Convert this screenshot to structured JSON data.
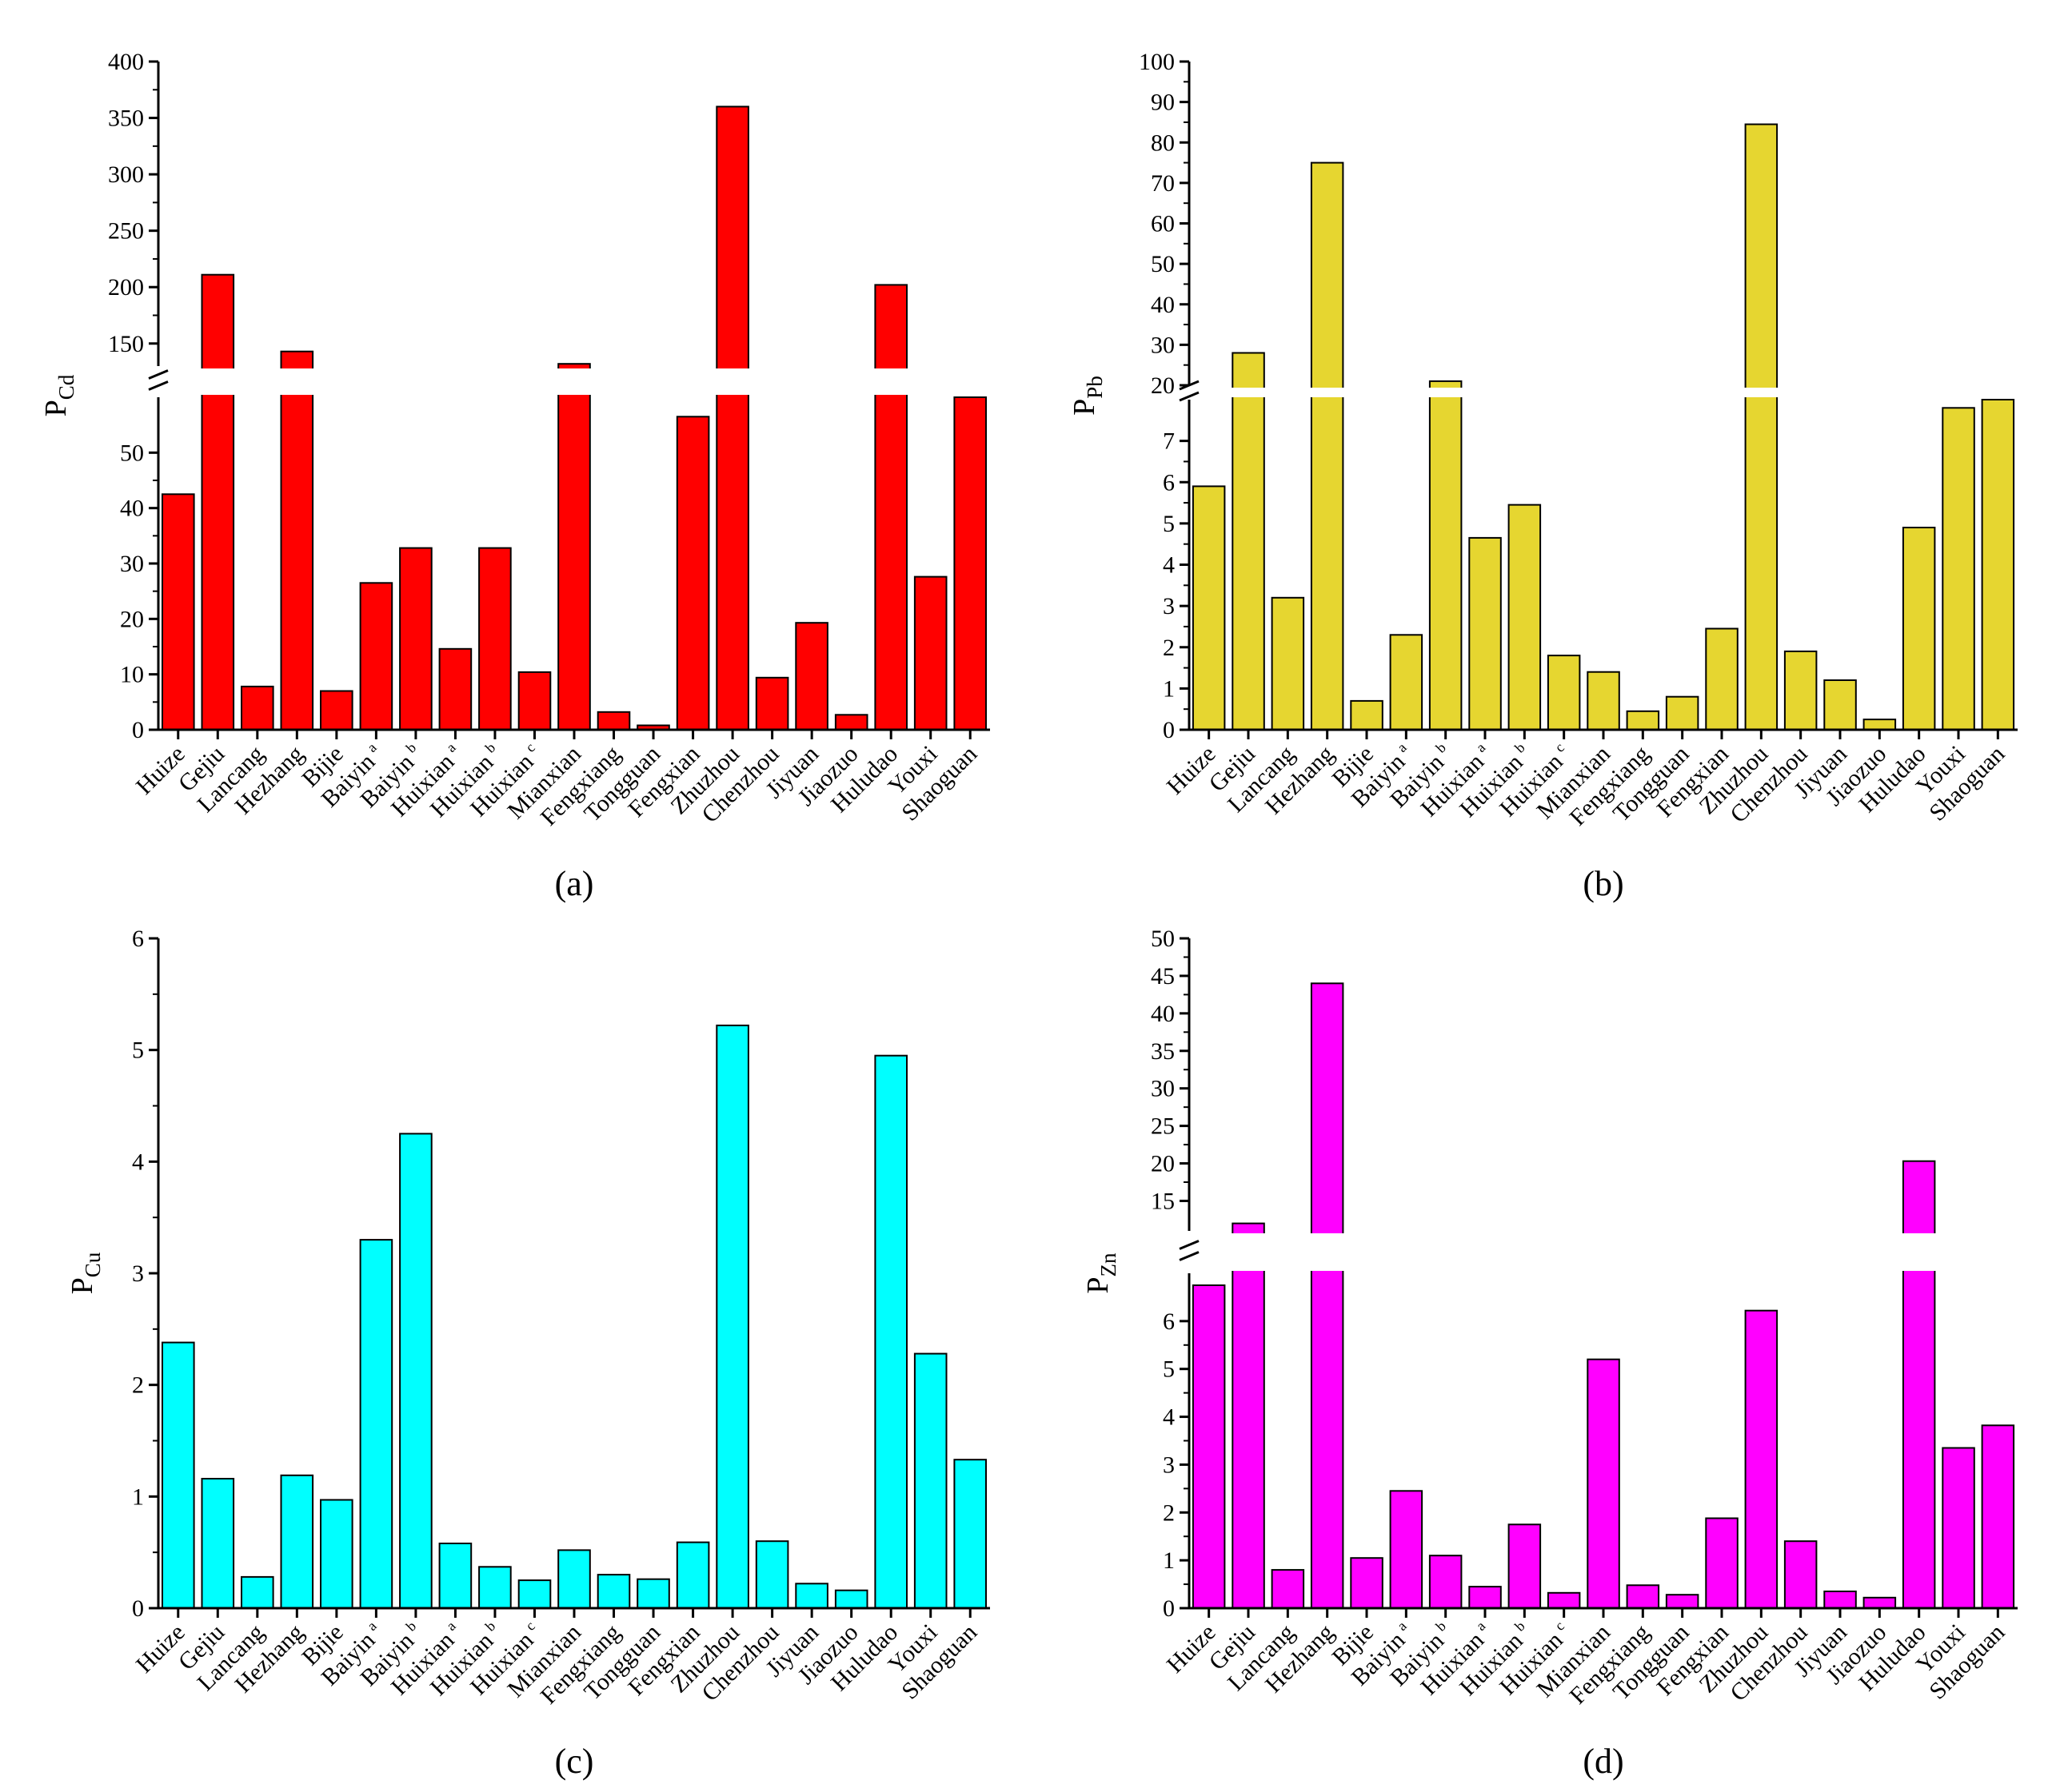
{
  "chart_data": [
    {
      "id": "a",
      "type": "bar",
      "panel_label": "(a)",
      "ylabel": {
        "main": "P",
        "sub": "Cd"
      },
      "color": "#ff0000",
      "axis_break": {
        "lower_range": [
          0,
          60
        ],
        "upper_range": [
          130,
          400
        ]
      },
      "lower_ticks": [
        0,
        10,
        20,
        30,
        40,
        50
      ],
      "upper_ticks": [
        150,
        200,
        250,
        300,
        350,
        400
      ],
      "categories": [
        {
          "name": "Huize",
          "sup": ""
        },
        {
          "name": "Gejiu",
          "sup": ""
        },
        {
          "name": "Lancang",
          "sup": ""
        },
        {
          "name": "Hezhang",
          "sup": ""
        },
        {
          "name": "Bijie",
          "sup": ""
        },
        {
          "name": "Baiyin",
          "sup": "a"
        },
        {
          "name": "Baiyin",
          "sup": "b"
        },
        {
          "name": "Huixian",
          "sup": "a"
        },
        {
          "name": "Huixian",
          "sup": "b"
        },
        {
          "name": "Huixian",
          "sup": "c"
        },
        {
          "name": "Mianxian",
          "sup": ""
        },
        {
          "name": "Fengxiang",
          "sup": ""
        },
        {
          "name": "Tongguan",
          "sup": ""
        },
        {
          "name": "Fengxian",
          "sup": ""
        },
        {
          "name": "Zhuzhou",
          "sup": ""
        },
        {
          "name": "Chenzhou",
          "sup": ""
        },
        {
          "name": "Jiyuan",
          "sup": ""
        },
        {
          "name": "Jiaozuo",
          "sup": ""
        },
        {
          "name": "Huludao",
          "sup": ""
        },
        {
          "name": "Youxi",
          "sup": ""
        },
        {
          "name": "Shaoguan",
          "sup": ""
        }
      ],
      "values": [
        42.5,
        211,
        7.8,
        143,
        7,
        26.5,
        32.8,
        14.6,
        32.8,
        10.4,
        132,
        3.2,
        0.8,
        56.5,
        360,
        9.4,
        19.3,
        2.7,
        202,
        27.6,
        60
      ]
    },
    {
      "id": "b",
      "type": "bar",
      "panel_label": "(b)",
      "ylabel": {
        "main": "P",
        "sub": "Pb"
      },
      "color": "#e6d630",
      "axis_break": {
        "lower_range": [
          0,
          8
        ],
        "upper_range": [
          20,
          100
        ]
      },
      "lower_ticks": [
        0,
        1,
        2,
        3,
        4,
        5,
        6,
        7
      ],
      "upper_ticks": [
        20,
        30,
        40,
        50,
        60,
        70,
        80,
        90,
        100
      ],
      "categories": [
        {
          "name": "Huize",
          "sup": ""
        },
        {
          "name": "Gejiu",
          "sup": ""
        },
        {
          "name": "Lancang",
          "sup": ""
        },
        {
          "name": "Hezhang",
          "sup": ""
        },
        {
          "name": "Bijie",
          "sup": ""
        },
        {
          "name": "Baiyin",
          "sup": "a"
        },
        {
          "name": "Baiyin",
          "sup": "b"
        },
        {
          "name": "Huixian",
          "sup": "a"
        },
        {
          "name": "Huixian",
          "sup": "b"
        },
        {
          "name": "Huixian",
          "sup": "c"
        },
        {
          "name": "Mianxian",
          "sup": ""
        },
        {
          "name": "Fengxiang",
          "sup": ""
        },
        {
          "name": "Tongguan",
          "sup": ""
        },
        {
          "name": "Fengxian",
          "sup": ""
        },
        {
          "name": "Zhuzhou",
          "sup": ""
        },
        {
          "name": "Chenzhou",
          "sup": ""
        },
        {
          "name": "Jiyuan",
          "sup": ""
        },
        {
          "name": "Jiaozuo",
          "sup": ""
        },
        {
          "name": "Huludao",
          "sup": ""
        },
        {
          "name": "Youxi",
          "sup": ""
        },
        {
          "name": "Shaoguan",
          "sup": ""
        }
      ],
      "values": [
        5.9,
        28,
        3.2,
        75,
        0.7,
        2.3,
        21,
        4.65,
        5.45,
        1.8,
        1.4,
        0.45,
        0.8,
        2.45,
        84.5,
        1.9,
        1.2,
        0.25,
        4.9,
        7.8,
        8
      ]
    },
    {
      "id": "c",
      "type": "bar",
      "panel_label": "(c)",
      "ylabel": {
        "main": "P",
        "sub": "Cu"
      },
      "color": "#00ffff",
      "ylim": [
        0,
        6
      ],
      "ticks": [
        0,
        1,
        2,
        3,
        4,
        5,
        6
      ],
      "categories": [
        {
          "name": "Huize",
          "sup": ""
        },
        {
          "name": "Gejiu",
          "sup": ""
        },
        {
          "name": "Lancang",
          "sup": ""
        },
        {
          "name": "Hezhang",
          "sup": ""
        },
        {
          "name": "Bijie",
          "sup": ""
        },
        {
          "name": "Baiyin",
          "sup": "a"
        },
        {
          "name": "Baiyin",
          "sup": "b"
        },
        {
          "name": "Huixian",
          "sup": "a"
        },
        {
          "name": "Huixian",
          "sup": "b"
        },
        {
          "name": "Huixian",
          "sup": "c"
        },
        {
          "name": "Mianxian",
          "sup": ""
        },
        {
          "name": "Fengxiang",
          "sup": ""
        },
        {
          "name": "Tongguan",
          "sup": ""
        },
        {
          "name": "Fengxian",
          "sup": ""
        },
        {
          "name": "Zhuzhou",
          "sup": ""
        },
        {
          "name": "Chenzhou",
          "sup": ""
        },
        {
          "name": "Jiyuan",
          "sup": ""
        },
        {
          "name": "Jiaozuo",
          "sup": ""
        },
        {
          "name": "Huludao",
          "sup": ""
        },
        {
          "name": "Youxi",
          "sup": ""
        },
        {
          "name": "Shaoguan",
          "sup": ""
        }
      ],
      "values": [
        2.38,
        1.16,
        0.28,
        1.19,
        0.97,
        3.3,
        4.25,
        0.58,
        0.37,
        0.25,
        0.52,
        0.3,
        0.26,
        0.59,
        5.22,
        0.6,
        0.22,
        0.16,
        4.95,
        2.28,
        1.33
      ]
    },
    {
      "id": "d",
      "type": "bar",
      "panel_label": "(d)",
      "ylabel": {
        "main": "P",
        "sub": "Zn"
      },
      "color": "#ff00ff",
      "axis_break": {
        "lower_range": [
          0,
          7
        ],
        "upper_range": [
          11,
          50
        ]
      },
      "lower_ticks": [
        0,
        1,
        2,
        3,
        4,
        5,
        6
      ],
      "upper_ticks": [
        15,
        20,
        25,
        30,
        35,
        40,
        45,
        50
      ],
      "categories": [
        {
          "name": "Huize",
          "sup": ""
        },
        {
          "name": "Gejiu",
          "sup": ""
        },
        {
          "name": "Lancang",
          "sup": ""
        },
        {
          "name": "Hezhang",
          "sup": ""
        },
        {
          "name": "Bijie",
          "sup": ""
        },
        {
          "name": "Baiyin",
          "sup": "a"
        },
        {
          "name": "Baiyin",
          "sup": "b"
        },
        {
          "name": "Huixian",
          "sup": "a"
        },
        {
          "name": "Huixian",
          "sup": "b"
        },
        {
          "name": "Huixian",
          "sup": "c"
        },
        {
          "name": "Mianxian",
          "sup": ""
        },
        {
          "name": "Fengxiang",
          "sup": ""
        },
        {
          "name": "Tongguan",
          "sup": ""
        },
        {
          "name": "Fengxian",
          "sup": ""
        },
        {
          "name": "Zhuzhou",
          "sup": ""
        },
        {
          "name": "Chenzhou",
          "sup": ""
        },
        {
          "name": "Jiyuan",
          "sup": ""
        },
        {
          "name": "Jiaozuo",
          "sup": ""
        },
        {
          "name": "Huludao",
          "sup": ""
        },
        {
          "name": "Youxi",
          "sup": ""
        },
        {
          "name": "Shaoguan",
          "sup": ""
        }
      ],
      "values": [
        6.75,
        12,
        0.8,
        44,
        1.05,
        2.45,
        1.1,
        0.45,
        1.75,
        0.32,
        5.2,
        0.48,
        0.28,
        1.88,
        6.22,
        1.4,
        0.35,
        0.22,
        20.3,
        3.35,
        3.82
      ]
    }
  ]
}
